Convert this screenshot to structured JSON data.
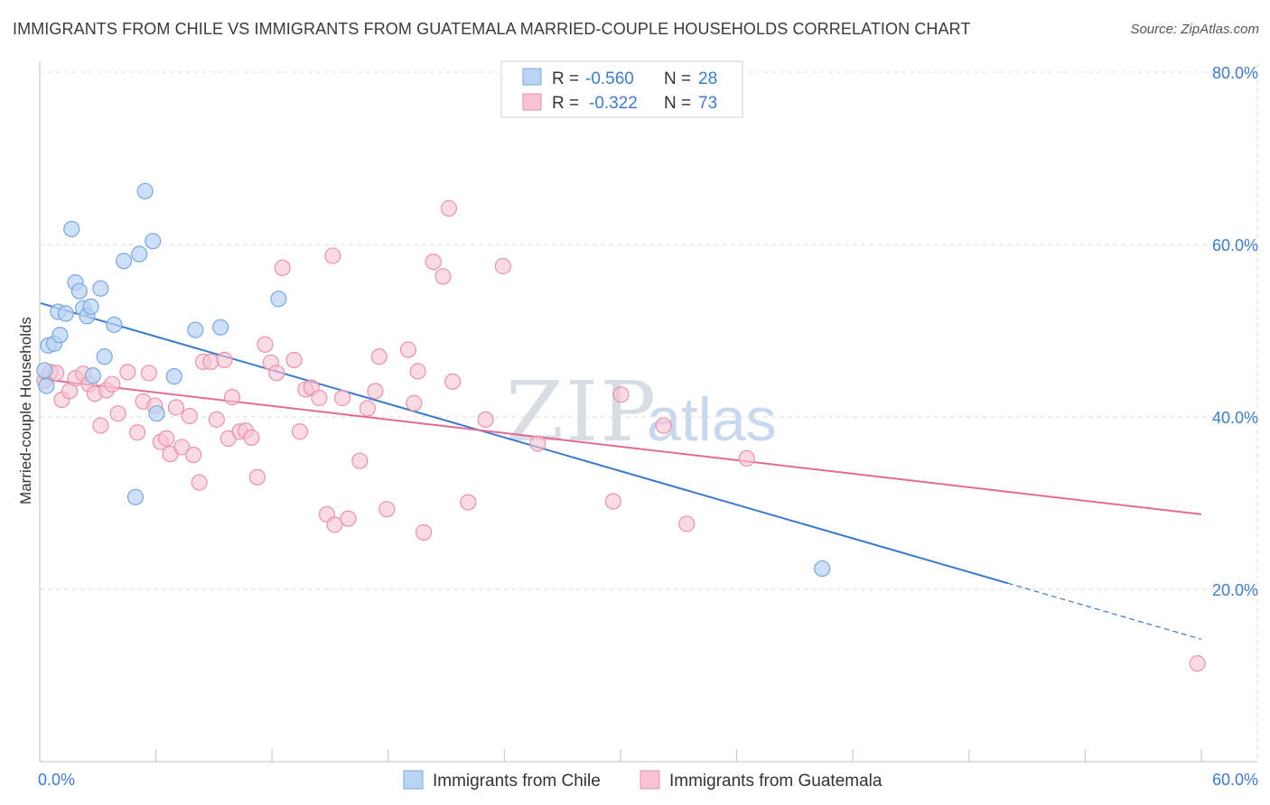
{
  "header": {
    "title": "IMMIGRANTS FROM CHILE VS IMMIGRANTS FROM GUATEMALA MARRIED-COUPLE HOUSEHOLDS CORRELATION CHART",
    "source": "Source: ZipAtlas.com"
  },
  "watermark": {
    "zip": "ZIP",
    "atlas": "atlas"
  },
  "legend": {
    "r_label": "R =",
    "n_label": "N =",
    "chile": {
      "r": "-0.560",
      "n": "28"
    },
    "guatemala": {
      "r": "-0.322",
      "n": "73"
    }
  },
  "colors": {
    "chile_fill": "#b9d3f3",
    "chile_stroke": "#7aa6df",
    "chile_line": "#3a78cc",
    "guatemala_fill": "#f7c3d2",
    "guatemala_stroke": "#e992ad",
    "guatemala_line": "#e06c94",
    "axis_text": "#3f7cc9",
    "grid": "#dddddd"
  },
  "chart_data": {
    "type": "scatter",
    "title": "IMMIGRANTS FROM CHILE VS IMMIGRANTS FROM GUATEMALA MARRIED-COUPLE HOUSEHOLDS CORRELATION CHART",
    "xlabel": "",
    "ylabel": "Married-couple Households",
    "xlim": [
      0,
      60
    ],
    "ylim": [
      0,
      80
    ],
    "x_tick_labels": [
      {
        "value": 0,
        "label": "0.0%"
      },
      {
        "value": 60,
        "label": "60.0%"
      }
    ],
    "y_tick_labels": [
      {
        "value": 20,
        "label": "20.0%"
      },
      {
        "value": 40,
        "label": "40.0%"
      },
      {
        "value": 60,
        "label": "60.0%"
      },
      {
        "value": 80,
        "label": "80.0%"
      }
    ],
    "series": [
      {
        "name": "Immigrants from Chile",
        "r": -0.56,
        "n": 28,
        "trend": {
          "x0": 0,
          "y0": 53.2,
          "x1": 50,
          "y1": 20.7,
          "dash_to_x": 60,
          "dash_to_y": 14.2
        },
        "points": [
          [
            0.2,
            45.4
          ],
          [
            0.3,
            43.6
          ],
          [
            0.4,
            48.3
          ],
          [
            0.7,
            48.5
          ],
          [
            0.9,
            52.2
          ],
          [
            1.0,
            49.5
          ],
          [
            1.3,
            52.0
          ],
          [
            1.6,
            61.8
          ],
          [
            1.8,
            55.6
          ],
          [
            2.0,
            54.6
          ],
          [
            2.2,
            52.6
          ],
          [
            2.4,
            51.7
          ],
          [
            2.6,
            52.8
          ],
          [
            2.7,
            44.8
          ],
          [
            3.1,
            54.9
          ],
          [
            3.3,
            47.0
          ],
          [
            3.8,
            50.7
          ],
          [
            4.3,
            58.1
          ],
          [
            4.9,
            30.7
          ],
          [
            5.1,
            58.9
          ],
          [
            5.4,
            66.2
          ],
          [
            5.8,
            60.4
          ],
          [
            6.0,
            40.4
          ],
          [
            6.9,
            44.7
          ],
          [
            8.0,
            50.1
          ],
          [
            9.3,
            50.4
          ],
          [
            12.3,
            53.7
          ],
          [
            40.4,
            22.4
          ]
        ]
      },
      {
        "name": "Immigrants from Guatemala",
        "r": -0.322,
        "n": 73,
        "trend": {
          "x0": 0,
          "y0": 44.4,
          "x1": 60,
          "y1": 28.7
        },
        "points": [
          [
            0.2,
            44.2
          ],
          [
            0.5,
            45.2
          ],
          [
            0.8,
            45.1
          ],
          [
            1.1,
            42.0
          ],
          [
            1.5,
            43.0
          ],
          [
            1.8,
            44.5
          ],
          [
            2.2,
            45.0
          ],
          [
            2.5,
            43.8
          ],
          [
            2.8,
            42.7
          ],
          [
            3.1,
            39.0
          ],
          [
            3.4,
            43.1
          ],
          [
            3.7,
            43.8
          ],
          [
            4.0,
            40.4
          ],
          [
            4.5,
            45.2
          ],
          [
            5.0,
            38.2
          ],
          [
            5.3,
            41.8
          ],
          [
            5.6,
            45.1
          ],
          [
            5.9,
            41.3
          ],
          [
            6.2,
            37.1
          ],
          [
            6.5,
            37.5
          ],
          [
            6.7,
            35.7
          ],
          [
            7.0,
            41.1
          ],
          [
            7.3,
            36.5
          ],
          [
            7.7,
            40.1
          ],
          [
            7.9,
            35.6
          ],
          [
            8.2,
            32.4
          ],
          [
            8.4,
            46.4
          ],
          [
            8.8,
            46.4
          ],
          [
            9.1,
            39.7
          ],
          [
            9.5,
            46.6
          ],
          [
            9.7,
            37.5
          ],
          [
            9.9,
            42.3
          ],
          [
            10.3,
            38.3
          ],
          [
            10.6,
            38.4
          ],
          [
            10.9,
            37.6
          ],
          [
            11.2,
            33.0
          ],
          [
            11.6,
            48.4
          ],
          [
            11.9,
            46.3
          ],
          [
            12.2,
            45.1
          ],
          [
            12.5,
            57.3
          ],
          [
            13.1,
            46.6
          ],
          [
            13.4,
            38.3
          ],
          [
            13.7,
            43.2
          ],
          [
            14.0,
            43.4
          ],
          [
            14.4,
            42.2
          ],
          [
            14.8,
            28.7
          ],
          [
            15.2,
            27.5
          ],
          [
            15.1,
            58.7
          ],
          [
            15.6,
            42.2
          ],
          [
            15.9,
            28.2
          ],
          [
            16.5,
            34.9
          ],
          [
            16.9,
            41.0
          ],
          [
            17.3,
            43.0
          ],
          [
            17.5,
            47.0
          ],
          [
            17.9,
            29.3
          ],
          [
            19.0,
            47.8
          ],
          [
            19.3,
            41.6
          ],
          [
            19.5,
            45.3
          ],
          [
            19.8,
            26.6
          ],
          [
            20.3,
            58.0
          ],
          [
            20.8,
            56.3
          ],
          [
            21.1,
            64.2
          ],
          [
            21.3,
            44.1
          ],
          [
            22.1,
            30.1
          ],
          [
            23.0,
            39.7
          ],
          [
            23.9,
            57.5
          ],
          [
            25.7,
            36.9
          ],
          [
            29.6,
            30.2
          ],
          [
            30.0,
            42.6
          ],
          [
            32.2,
            39.0
          ],
          [
            33.4,
            27.6
          ],
          [
            36.5,
            35.2
          ],
          [
            59.8,
            11.4
          ]
        ]
      }
    ]
  },
  "bottom_legend": {
    "chile_label": "Immigrants from Chile",
    "guatemala_label": "Immigrants from Guatemala"
  }
}
